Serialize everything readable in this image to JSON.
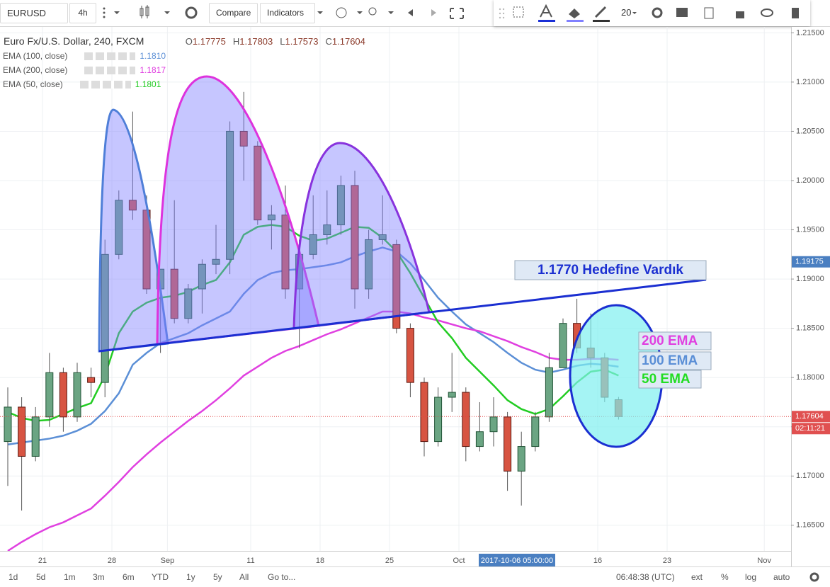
{
  "toolbar": {
    "symbol": "EURUSD",
    "interval": "4h",
    "compare": "Compare",
    "indicators": "Indicators",
    "font_size": "20"
  },
  "legend": {
    "title": "Euro Fx/U.S. Dollar, 240, FXCM",
    "ohlc": [
      {
        "label": "O",
        "value": "1.17775"
      },
      {
        "label": "H",
        "value": "1.17803"
      },
      {
        "label": "L",
        "value": "1.17573"
      },
      {
        "label": "C",
        "value": "1.17604"
      }
    ]
  },
  "chart_data": {
    "type": "candlestick",
    "categories": [
      null,
      null,
      null,
      "21",
      null,
      null,
      null,
      null,
      "28",
      null,
      null,
      null,
      "Sep",
      null,
      null,
      null,
      null,
      null,
      "11",
      null,
      null,
      null,
      null,
      "18",
      null,
      null,
      null,
      null,
      "25",
      null,
      null,
      null,
      null,
      "Oct",
      null,
      null,
      null,
      null,
      null,
      null,
      null,
      null,
      null,
      "16",
      null,
      null,
      null,
      null,
      "23",
      null,
      null,
      null,
      null,
      null,
      null,
      "Nov",
      null
    ],
    "open": [
      1.1735,
      1.177,
      1.172,
      1.176,
      1.1805,
      1.176,
      1.18,
      1.1795,
      1.1925,
      1.198,
      1.197,
      1.189,
      1.191,
      1.186,
      1.189,
      1.1915,
      1.192,
      1.205,
      1.2035,
      1.196,
      1.1965,
      1.189,
      1.1925,
      1.1945,
      1.1955,
      1.1995,
      1.189,
      1.194,
      1.1935,
      1.185,
      1.1795,
      1.1735,
      1.178,
      1.1785,
      1.173,
      1.1745,
      1.176,
      1.1705,
      1.173,
      1.176,
      1.181,
      1.1855,
      1.183,
      1.182,
      1.17775,
      null,
      null,
      null,
      null,
      null,
      null,
      null,
      null,
      null,
      null,
      null,
      null
    ],
    "high": [
      1.179,
      1.178,
      1.177,
      1.1825,
      1.181,
      1.1815,
      1.181,
      1.194,
      1.199,
      1.207,
      1.1985,
      1.191,
      1.198,
      1.1895,
      1.192,
      1.1955,
      1.206,
      1.209,
      1.204,
      1.1975,
      1.1995,
      1.194,
      1.1985,
      1.199,
      1.2005,
      1.201,
      1.195,
      1.1985,
      1.194,
      1.1855,
      1.18,
      1.179,
      1.1825,
      1.179,
      1.1775,
      1.178,
      1.1765,
      1.1745,
      1.1765,
      1.1825,
      1.186,
      1.188,
      1.1865,
      1.1825,
      1.17803,
      null,
      null,
      null,
      null,
      null,
      null,
      null,
      null,
      null,
      null,
      null,
      null
    ],
    "low": [
      1.169,
      1.1665,
      1.1715,
      1.175,
      1.1745,
      1.1755,
      1.178,
      1.178,
      1.192,
      1.196,
      1.1885,
      1.1825,
      1.1855,
      1.1855,
      1.1865,
      1.1905,
      1.1905,
      1.2,
      1.1955,
      1.193,
      1.188,
      1.183,
      1.192,
      1.1935,
      1.1945,
      1.187,
      1.188,
      1.1935,
      1.1845,
      1.178,
      1.172,
      1.173,
      1.1765,
      1.1715,
      1.1725,
      1.173,
      1.1685,
      1.167,
      1.1725,
      1.1755,
      1.181,
      1.1825,
      1.181,
      1.1775,
      1.17573,
      null,
      null,
      null,
      null,
      null,
      null,
      null,
      null,
      null,
      null,
      null,
      null
    ],
    "close": [
      1.177,
      1.172,
      1.176,
      1.1805,
      1.176,
      1.1805,
      1.1795,
      1.1925,
      1.198,
      1.197,
      1.189,
      1.191,
      1.186,
      1.189,
      1.1915,
      1.192,
      1.205,
      1.2035,
      1.196,
      1.1965,
      1.189,
      1.1925,
      1.1945,
      1.1955,
      1.1995,
      1.189,
      1.194,
      1.1945,
      1.185,
      1.1795,
      1.1735,
      1.178,
      1.1785,
      1.173,
      1.1745,
      1.176,
      1.1705,
      1.173,
      1.176,
      1.181,
      1.1855,
      1.183,
      1.182,
      1.178,
      1.17604,
      null,
      null,
      null,
      null,
      null,
      null,
      null,
      null,
      null,
      null,
      null,
      null
    ],
    "up_color": "#6ba583",
    "down_color": "#d75442",
    "series": [
      {
        "name": "EMA (100, close)",
        "legend_value": "1.1810",
        "color": "#5b8fd6",
        "values": [
          1.1732,
          1.1734,
          1.1736,
          1.1738,
          1.1741,
          1.1746,
          1.1753,
          1.1766,
          1.1784,
          1.1813,
          1.1825,
          1.1835,
          1.184,
          1.1845,
          1.1853,
          1.186,
          1.1867,
          1.1885,
          1.1899,
          1.1906,
          1.1909,
          1.191,
          1.1912,
          1.1914,
          1.1917,
          1.1923,
          1.1928,
          1.1932,
          1.1928,
          1.1916,
          1.1899,
          1.1881,
          1.1867,
          1.1854,
          1.1845,
          1.1836,
          1.1825,
          1.1815,
          1.1808,
          1.1805,
          1.1808,
          1.1812,
          1.1814,
          1.1813,
          1.1811,
          null,
          null,
          null,
          null,
          null,
          null,
          null,
          null,
          null,
          null,
          null,
          null
        ]
      },
      {
        "name": "EMA (200, close)",
        "legend_value": "1.1817",
        "color": "#e040e0",
        "values": [
          1.1624,
          1.1633,
          1.1641,
          1.1648,
          1.1653,
          1.166,
          1.1667,
          1.168,
          1.1694,
          1.1709,
          1.1722,
          1.1734,
          1.1745,
          1.1756,
          1.1766,
          1.1777,
          1.1789,
          1.1802,
          1.1811,
          1.182,
          1.1827,
          1.1832,
          1.1838,
          1.1844,
          1.1849,
          1.1855,
          1.1861,
          1.1867,
          1.1867,
          1.1865,
          1.1861,
          1.1858,
          1.1854,
          1.185,
          1.1847,
          1.1842,
          1.1837,
          1.1831,
          1.1826,
          1.182,
          1.1818,
          1.1818,
          1.1819,
          1.1819,
          1.1818,
          null,
          null,
          null,
          null,
          null,
          null,
          null,
          null,
          null,
          null,
          null,
          null
        ]
      },
      {
        "name": "EMA (50, close)",
        "legend_value": "1.1801",
        "color": "#22cc22",
        "values": [
          1.1765,
          1.1759,
          1.1756,
          1.1757,
          1.1763,
          1.1769,
          1.1774,
          1.1802,
          1.1845,
          1.1867,
          1.1876,
          1.1881,
          1.1883,
          1.1887,
          1.1894,
          1.1899,
          1.1917,
          1.1945,
          1.1953,
          1.1955,
          1.1953,
          1.1944,
          1.1939,
          1.1941,
          1.1947,
          1.1953,
          1.1952,
          1.1942,
          1.1928,
          1.1906,
          1.1881,
          1.1856,
          1.184,
          1.182,
          1.1806,
          1.1792,
          1.1777,
          1.1768,
          1.1763,
          1.1768,
          1.1781,
          1.1795,
          1.1806,
          1.1808,
          1.1802,
          null,
          null,
          null,
          null,
          null,
          null,
          null,
          null,
          null,
          null,
          null,
          null
        ]
      }
    ],
    "ylim": [
      1.1624,
      1.2156
    ],
    "yticks": [
      {
        "value": 1.165,
        "label": "1.16500"
      },
      {
        "value": 1.17,
        "label": "1.17000"
      },
      {
        "value": 1.175,
        "label": "1.17500"
      },
      {
        "value": 1.18,
        "label": "1.18000"
      },
      {
        "value": 1.185,
        "label": "1.18500"
      },
      {
        "value": 1.19,
        "label": "1.19000"
      },
      {
        "value": 1.195,
        "label": "1.19500"
      },
      {
        "value": 1.2,
        "label": "1.20000"
      },
      {
        "value": 1.205,
        "label": "1.20500"
      },
      {
        "value": 1.21,
        "label": "1.21000"
      },
      {
        "value": 1.215,
        "label": "1.21500"
      }
    ],
    "grid": true,
    "crosshair_price": {
      "value": 1.19175,
      "label": "1.19175"
    },
    "crosshair_time": "2017-10-06 05:00:00",
    "last_price": {
      "value": 1.17604,
      "label": "1.17604"
    },
    "countdown": "02:11:21"
  },
  "drawings": {
    "note": "1.1770 Hedefine Vardık",
    "ema_labels": [
      "200 EMA",
      "100 EMA",
      "50 EMA"
    ]
  },
  "bottom_bar": {
    "ranges": [
      "1d",
      "5d",
      "1m",
      "3m",
      "6m",
      "YTD",
      "1y",
      "5y",
      "All"
    ],
    "goto": "Go to...",
    "clock": "06:48:38 (UTC)",
    "options": [
      "ext",
      "%",
      "log",
      "auto"
    ]
  }
}
